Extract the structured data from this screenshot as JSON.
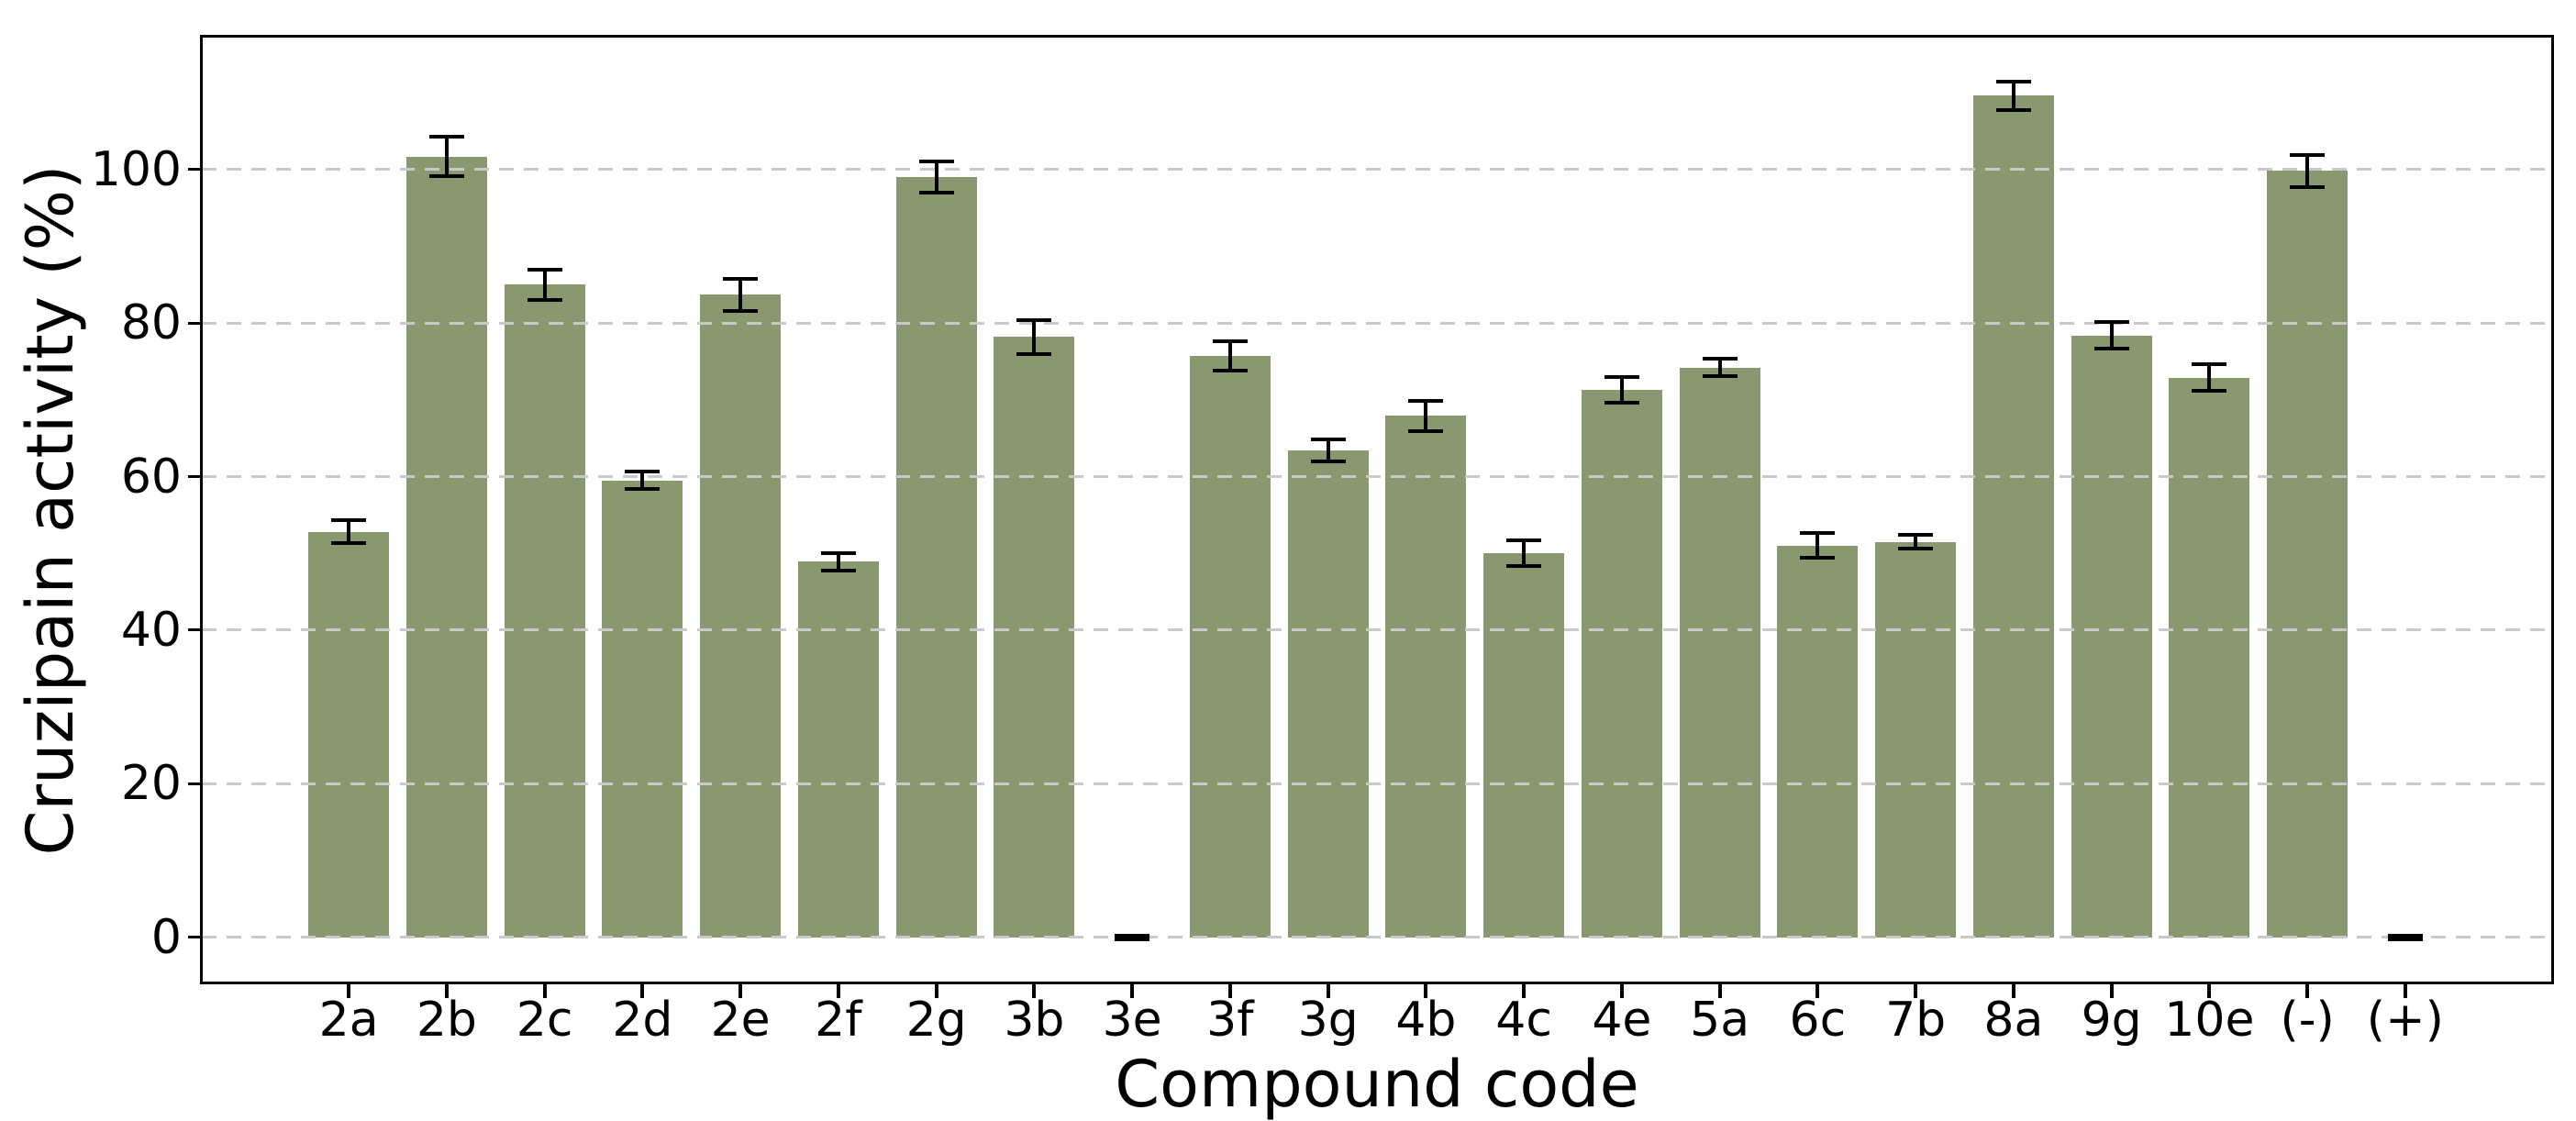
{
  "figure": {
    "background": "#ffffff"
  },
  "chart_data": {
    "type": "bar",
    "title": "",
    "xlabel": "Compound code",
    "ylabel": "Cruzipain activity (%)",
    "categories": [
      "2a",
      "2b",
      "2c",
      "2d",
      "2e",
      "2f",
      "2g",
      "3b",
      "3e",
      "3f",
      "3g",
      "4b",
      "4c",
      "4e",
      "5a",
      "6c",
      "7b",
      "8a",
      "9g",
      "10e",
      "(-)",
      "(+)"
    ],
    "values": [
      52.8,
      101.7,
      85.0,
      59.5,
      83.7,
      48.9,
      99.0,
      78.2,
      0.0,
      75.7,
      63.4,
      67.9,
      50.0,
      71.3,
      74.2,
      51.0,
      51.5,
      109.6,
      78.4,
      72.9,
      99.8,
      0.0
    ],
    "errors": [
      1.5,
      2.6,
      2.0,
      1.1,
      2.1,
      1.1,
      2.0,
      2.2,
      0.25,
      1.9,
      1.4,
      2.0,
      1.7,
      1.7,
      1.1,
      1.6,
      0.9,
      1.9,
      1.7,
      1.7,
      2.1,
      0.25
    ],
    "yticks": [
      0,
      20,
      40,
      60,
      80,
      100
    ],
    "ylim": [
      -5.9,
      117.3
    ],
    "grid": "horizontal",
    "grid_style": "dashed",
    "legend_position": "none",
    "bar_color": "#8a9870",
    "error_color": "#000000",
    "grid_color": "#c9c9c9",
    "axis_color": "#000000",
    "bar_width_frac": 0.825
  }
}
